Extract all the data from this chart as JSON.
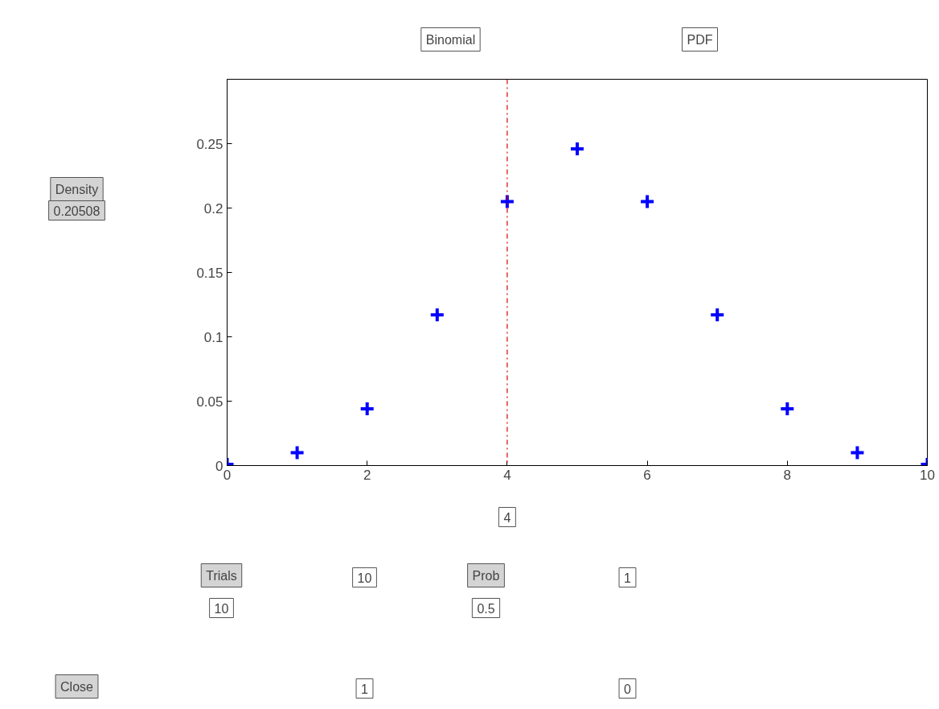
{
  "chart_data": {
    "type": "scatter",
    "marker": "cross",
    "grid": false,
    "x": [
      0,
      1,
      2,
      3,
      4,
      5,
      6,
      7,
      8,
      9,
      10
    ],
    "series": [
      {
        "color": "#0000ff",
        "values": [
          0.001,
          0.01,
          0.044,
          0.117,
          0.205,
          0.246,
          0.205,
          0.117,
          0.044,
          0.01,
          0.001
        ]
      }
    ],
    "xlim": [
      0,
      10
    ],
    "xticks": [
      0,
      2,
      4,
      6,
      8,
      10
    ],
    "ylim": [
      0,
      0.3
    ],
    "yticks": [
      0,
      0.05,
      0.1,
      0.15,
      0.2,
      0.25
    ],
    "ref_lines": [
      {
        "axis": "x",
        "value": 4,
        "color": "#d40000",
        "line_style": "dashdot"
      }
    ],
    "annotations": [
      "4",
      "Binomial",
      "PDF",
      "Density",
      "0.20508",
      "Trials",
      "10",
      "10",
      "1",
      "Prob",
      "0.5",
      "1",
      "0",
      "Close"
    ]
  }
}
